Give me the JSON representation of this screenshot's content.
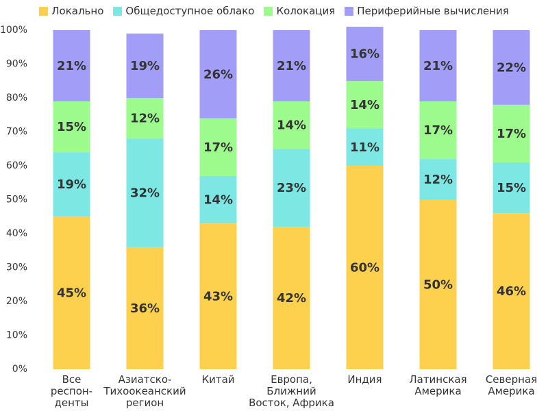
{
  "chart_data": {
    "type": "stacked_bar",
    "categories": [
      "Все\nреспон-\nденты",
      "Азиатско-\nТихоокеанский\nрегион",
      "Китай",
      "Европа,\nБлижний\nВосток, Африка",
      "Индия",
      "Латинская\nАмерика",
      "Северная\nАмерика"
    ],
    "series": [
      {
        "name": "Локально",
        "color": "#fdd14e",
        "values": [
          45,
          36,
          43,
          42,
          60,
          50,
          46
        ],
        "value_labels": [
          "45%",
          "36%",
          "43%",
          "42%",
          "60%",
          "50%",
          "46%"
        ]
      },
      {
        "name": "Общедоступное облако",
        "color": "#7de8e3",
        "values": [
          19,
          32,
          14,
          23,
          11,
          12,
          15
        ],
        "value_labels": [
          "19%",
          "32%",
          "14%",
          "23%",
          "11%",
          "12%",
          "15%"
        ]
      },
      {
        "name": "Колокация",
        "color": "#9dfa8d",
        "values": [
          15,
          12,
          17,
          14,
          14,
          17,
          17
        ],
        "value_labels": [
          "15%",
          "12%",
          "17%",
          "14%",
          "14%",
          "17%",
          "17%"
        ]
      },
      {
        "name": "Периферийные вычисления",
        "color": "#a29ef8",
        "values": [
          21,
          19,
          26,
          21,
          16,
          21,
          22
        ],
        "value_labels": [
          "21%",
          "19%",
          "26%",
          "21%",
          "16%",
          "21%",
          "22%"
        ]
      }
    ],
    "ylim": [
      0,
      100
    ],
    "yticks": [
      {
        "value": 0,
        "label": "0%"
      },
      {
        "value": 10,
        "label": "10%"
      },
      {
        "value": 20,
        "label": "20%"
      },
      {
        "value": 30,
        "label": "30%"
      },
      {
        "value": 40,
        "label": "40%"
      },
      {
        "value": 50,
        "label": "50%"
      },
      {
        "value": 60,
        "label": "60%"
      },
      {
        "value": 70,
        "label": "70%"
      },
      {
        "value": 80,
        "label": "80%"
      },
      {
        "value": 90,
        "label": "90%"
      },
      {
        "value": 100,
        "label": "100%"
      }
    ],
    "grid": false
  }
}
